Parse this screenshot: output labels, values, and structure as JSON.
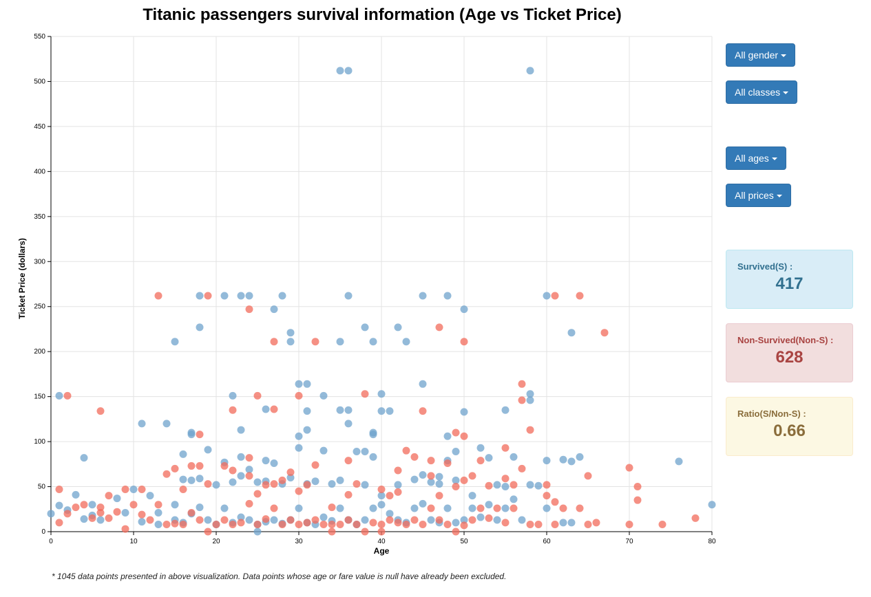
{
  "title": "Titanic passengers survival information (Age vs Ticket Price)",
  "filters": {
    "gender": "All gender",
    "classes": "All classes",
    "ages": "All ages",
    "prices": "All prices"
  },
  "stats": {
    "survived_label": "Survived(S) :",
    "survived_value": "417",
    "nonsurvived_label": "Non-Survived(Non-S) :",
    "nonsurvived_value": "628",
    "ratio_label": "Ratio(S/Non-S) :",
    "ratio_value": "0.66"
  },
  "footnote": "* 1045 data points presented in above visualization. Data points whose age or fare value is null have already been excluded.",
  "colors": {
    "survived": "#6fa3cc",
    "nonsurvived": "#f26b5b",
    "accent": "#337ab7"
  },
  "chart_data": {
    "type": "scatter",
    "xlabel": "Age",
    "ylabel": "Ticket Price (dollars)",
    "xlim": [
      0,
      80
    ],
    "ylim": [
      0,
      550
    ],
    "xticks": [
      0,
      10,
      20,
      30,
      40,
      50,
      60,
      70,
      80
    ],
    "yticks": [
      0,
      50,
      100,
      150,
      200,
      250,
      300,
      350,
      400,
      450,
      500,
      550
    ],
    "grid": true,
    "series": [
      {
        "key": "survived",
        "color": "#6fa3cc",
        "points": [
          [
            35,
            512
          ],
          [
            36,
            512
          ],
          [
            58,
            512
          ],
          [
            18,
            262
          ],
          [
            21,
            262
          ],
          [
            23,
            262
          ],
          [
            24,
            262
          ],
          [
            28,
            262
          ],
          [
            36,
            262
          ],
          [
            45,
            262
          ],
          [
            48,
            262
          ],
          [
            60,
            262
          ],
          [
            18,
            227
          ],
          [
            38,
            227
          ],
          [
            42,
            227
          ],
          [
            27,
            247
          ],
          [
            50,
            247
          ],
          [
            15,
            211
          ],
          [
            29,
            211
          ],
          [
            35,
            211
          ],
          [
            39,
            211
          ],
          [
            43,
            211
          ],
          [
            63,
            221
          ],
          [
            29,
            221
          ],
          [
            1,
            151
          ],
          [
            22,
            151
          ],
          [
            33,
            151
          ],
          [
            40,
            153
          ],
          [
            45,
            164
          ],
          [
            30,
            164
          ],
          [
            31,
            164
          ],
          [
            58,
            153
          ],
          [
            58,
            146
          ],
          [
            11,
            120
          ],
          [
            14,
            120
          ],
          [
            36,
            120
          ],
          [
            26,
            136
          ],
          [
            35,
            135
          ],
          [
            36,
            135
          ],
          [
            40,
            134
          ],
          [
            41,
            134
          ],
          [
            50,
            133
          ],
          [
            55,
            135
          ],
          [
            31,
            134
          ],
          [
            17,
            110
          ],
          [
            17,
            108
          ],
          [
            19,
            91
          ],
          [
            23,
            113
          ],
          [
            30,
            106
          ],
          [
            31,
            113
          ],
          [
            39,
            110
          ],
          [
            39,
            108
          ],
          [
            48,
            106
          ],
          [
            52,
            93
          ],
          [
            56,
            83
          ],
          [
            4,
            82
          ],
          [
            16,
            86
          ],
          [
            21,
            77
          ],
          [
            23,
            83
          ],
          [
            24,
            69
          ],
          [
            26,
            79
          ],
          [
            27,
            76
          ],
          [
            30,
            93
          ],
          [
            33,
            90
          ],
          [
            37,
            89
          ],
          [
            38,
            89
          ],
          [
            39,
            83
          ],
          [
            47,
            61
          ],
          [
            48,
            79
          ],
          [
            49,
            89
          ],
          [
            53,
            82
          ],
          [
            60,
            79
          ],
          [
            62,
            80
          ],
          [
            63,
            78
          ],
          [
            64,
            83
          ],
          [
            76,
            78
          ],
          [
            3,
            41
          ],
          [
            5,
            30
          ],
          [
            8,
            37
          ],
          [
            10,
            47
          ],
          [
            12,
            40
          ],
          [
            13,
            21
          ],
          [
            15,
            30
          ],
          [
            16,
            58
          ],
          [
            17,
            57
          ],
          [
            18,
            59
          ],
          [
            20,
            52
          ],
          [
            22,
            55
          ],
          [
            23,
            62
          ],
          [
            25,
            55
          ],
          [
            26,
            56
          ],
          [
            28,
            53
          ],
          [
            29,
            60
          ],
          [
            31,
            53
          ],
          [
            32,
            56
          ],
          [
            34,
            53
          ],
          [
            35,
            57
          ],
          [
            38,
            52
          ],
          [
            40,
            40
          ],
          [
            42,
            52
          ],
          [
            44,
            58
          ],
          [
            45,
            63
          ],
          [
            46,
            55
          ],
          [
            47,
            53
          ],
          [
            49,
            57
          ],
          [
            51,
            40
          ],
          [
            54,
            52
          ],
          [
            55,
            50
          ],
          [
            58,
            52
          ],
          [
            59,
            51
          ],
          [
            0,
            20
          ],
          [
            1,
            29
          ],
          [
            2,
            24
          ],
          [
            4,
            14
          ],
          [
            5,
            18
          ],
          [
            6,
            13
          ],
          [
            9,
            21
          ],
          [
            11,
            11
          ],
          [
            13,
            8
          ],
          [
            15,
            13
          ],
          [
            16,
            10
          ],
          [
            17,
            20
          ],
          [
            18,
            27
          ],
          [
            19,
            13
          ],
          [
            20,
            8
          ],
          [
            21,
            26
          ],
          [
            22,
            10
          ],
          [
            23,
            16
          ],
          [
            24,
            13
          ],
          [
            25,
            8
          ],
          [
            26,
            11
          ],
          [
            27,
            13
          ],
          [
            28,
            9
          ],
          [
            29,
            13
          ],
          [
            30,
            26
          ],
          [
            31,
            10
          ],
          [
            32,
            8
          ],
          [
            33,
            16
          ],
          [
            34,
            12
          ],
          [
            35,
            26
          ],
          [
            36,
            13
          ],
          [
            37,
            8
          ],
          [
            38,
            13
          ],
          [
            39,
            26
          ],
          [
            40,
            30
          ],
          [
            41,
            20
          ],
          [
            42,
            13
          ],
          [
            43,
            10
          ],
          [
            44,
            26
          ],
          [
            45,
            31
          ],
          [
            46,
            13
          ],
          [
            47,
            10
          ],
          [
            48,
            26
          ],
          [
            49,
            10
          ],
          [
            50,
            13
          ],
          [
            51,
            26
          ],
          [
            52,
            16
          ],
          [
            53,
            30
          ],
          [
            54,
            13
          ],
          [
            55,
            26
          ],
          [
            56,
            36
          ],
          [
            57,
            13
          ],
          [
            60,
            26
          ],
          [
            62,
            10
          ],
          [
            63,
            10
          ],
          [
            80,
            30
          ],
          [
            25,
            0
          ]
        ]
      },
      {
        "key": "nonsurvived",
        "color": "#f26b5b",
        "points": [
          [
            13,
            262
          ],
          [
            19,
            262
          ],
          [
            61,
            262
          ],
          [
            64,
            262
          ],
          [
            24,
            247
          ],
          [
            47,
            227
          ],
          [
            27,
            211
          ],
          [
            32,
            211
          ],
          [
            50,
            211
          ],
          [
            67,
            221
          ],
          [
            2,
            151
          ],
          [
            25,
            151
          ],
          [
            30,
            151
          ],
          [
            38,
            153
          ],
          [
            57,
            164
          ],
          [
            57,
            146
          ],
          [
            58,
            113
          ],
          [
            6,
            134
          ],
          [
            22,
            135
          ],
          [
            27,
            136
          ],
          [
            45,
            134
          ],
          [
            18,
            108
          ],
          [
            49,
            110
          ],
          [
            50,
            106
          ],
          [
            24,
            82
          ],
          [
            36,
            79
          ],
          [
            46,
            79
          ],
          [
            48,
            76
          ],
          [
            52,
            79
          ],
          [
            55,
            93
          ],
          [
            43,
            90
          ],
          [
            42,
            68
          ],
          [
            46,
            62
          ],
          [
            51,
            62
          ],
          [
            56,
            52
          ],
          [
            60,
            52
          ],
          [
            65,
            62
          ],
          [
            70,
            71
          ],
          [
            71,
            50
          ],
          [
            1,
            47
          ],
          [
            6,
            21
          ],
          [
            7,
            40
          ],
          [
            9,
            47
          ],
          [
            11,
            47
          ],
          [
            14,
            64
          ],
          [
            15,
            70
          ],
          [
            16,
            47
          ],
          [
            17,
            73
          ],
          [
            18,
            73
          ],
          [
            19,
            53
          ],
          [
            21,
            73
          ],
          [
            22,
            68
          ],
          [
            24,
            62
          ],
          [
            25,
            42
          ],
          [
            26,
            52
          ],
          [
            27,
            53
          ],
          [
            28,
            57
          ],
          [
            29,
            66
          ],
          [
            30,
            45
          ],
          [
            31,
            52
          ],
          [
            32,
            74
          ],
          [
            34,
            27
          ],
          [
            36,
            41
          ],
          [
            37,
            53
          ],
          [
            40,
            47
          ],
          [
            41,
            40
          ],
          [
            42,
            44
          ],
          [
            44,
            83
          ],
          [
            47,
            40
          ],
          [
            49,
            50
          ],
          [
            50,
            57
          ],
          [
            53,
            51
          ],
          [
            55,
            59
          ],
          [
            57,
            70
          ],
          [
            61,
            33
          ],
          [
            1,
            10
          ],
          [
            2,
            20
          ],
          [
            3,
            27
          ],
          [
            4,
            30
          ],
          [
            5,
            15
          ],
          [
            6,
            27
          ],
          [
            7,
            15
          ],
          [
            8,
            22
          ],
          [
            9,
            3
          ],
          [
            10,
            30
          ],
          [
            11,
            19
          ],
          [
            12,
            13
          ],
          [
            13,
            30
          ],
          [
            14,
            8
          ],
          [
            15,
            9
          ],
          [
            16,
            8
          ],
          [
            17,
            21
          ],
          [
            18,
            13
          ],
          [
            19,
            0
          ],
          [
            20,
            8
          ],
          [
            21,
            13
          ],
          [
            22,
            8
          ],
          [
            23,
            10
          ],
          [
            24,
            31
          ],
          [
            25,
            8
          ],
          [
            26,
            14
          ],
          [
            27,
            26
          ],
          [
            28,
            8
          ],
          [
            29,
            13
          ],
          [
            30,
            8
          ],
          [
            31,
            10
          ],
          [
            32,
            13
          ],
          [
            33,
            8
          ],
          [
            34,
            8
          ],
          [
            35,
            8
          ],
          [
            36,
            13
          ],
          [
            37,
            8
          ],
          [
            38,
            0
          ],
          [
            39,
            10
          ],
          [
            40,
            8
          ],
          [
            41,
            13
          ],
          [
            42,
            10
          ],
          [
            43,
            8
          ],
          [
            44,
            13
          ],
          [
            45,
            8
          ],
          [
            46,
            26
          ],
          [
            47,
            13
          ],
          [
            48,
            8
          ],
          [
            49,
            0
          ],
          [
            50,
            7
          ],
          [
            51,
            13
          ],
          [
            52,
            26
          ],
          [
            53,
            15
          ],
          [
            54,
            26
          ],
          [
            55,
            10
          ],
          [
            56,
            26
          ],
          [
            58,
            8
          ],
          [
            59,
            8
          ],
          [
            61,
            8
          ],
          [
            62,
            26
          ],
          [
            64,
            26
          ],
          [
            65,
            8
          ],
          [
            66,
            10
          ],
          [
            70,
            8
          ],
          [
            71,
            35
          ],
          [
            74,
            8
          ],
          [
            78,
            15
          ],
          [
            60,
            40
          ],
          [
            34,
            0
          ],
          [
            40,
            0
          ]
        ]
      }
    ]
  }
}
